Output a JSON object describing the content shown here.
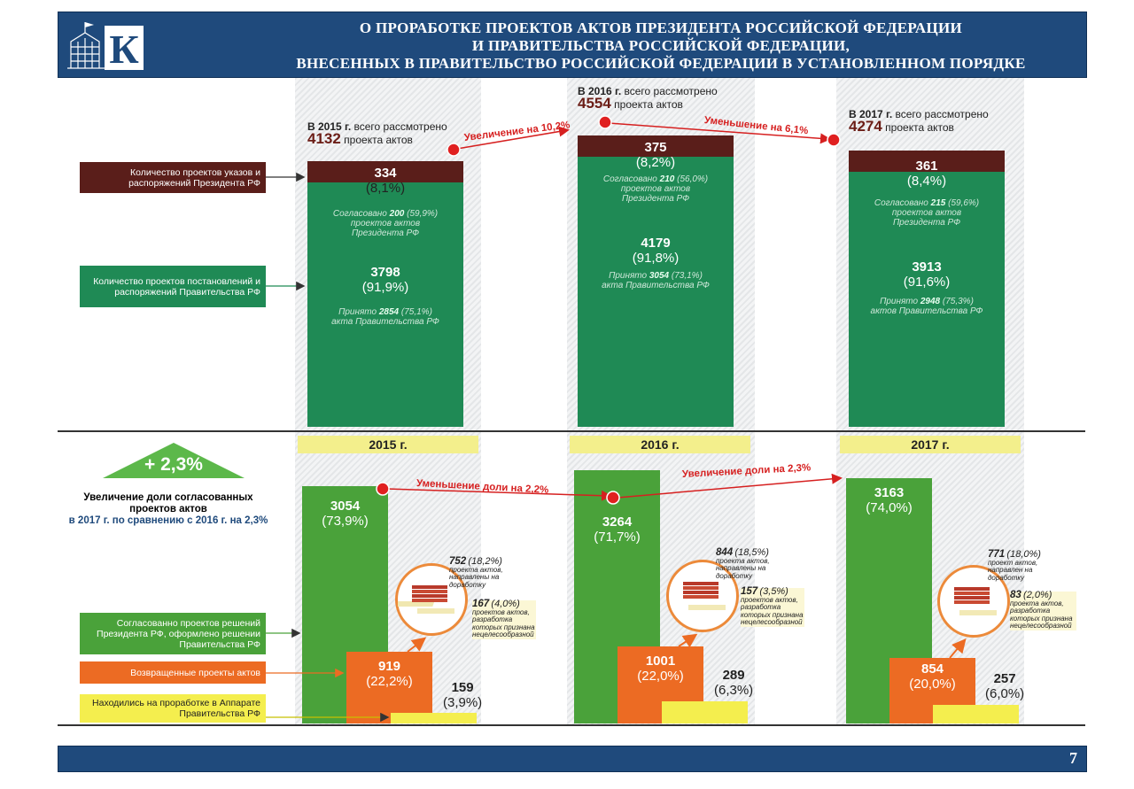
{
  "header": {
    "title_lines": [
      "О ПРОРАБОТКЕ ПРОЕКТОВ АКТОВ ПРЕЗИДЕНТА РОССИЙСКОЙ ФЕДЕРАЦИИ",
      "И ПРАВИТЕЛЬСТВА РОССИЙСКОЙ ФЕДЕРАЦИИ,",
      "ВНЕСЕННЫХ В ПРАВИТЕЛЬСТВО РОССИЙСКОЙ ФЕДЕРАЦИИ В УСТАНОВЛЕННОМ ПОРЯДКЕ"
    ],
    "logo_letter": "К",
    "logo_icon": "government-building-icon"
  },
  "legend_top": {
    "president": "Количество проектов указов и распоряжений Президента РФ",
    "government": "Количество проектов постановлений и распоряжений Правительства РФ"
  },
  "legend_bottom": {
    "agreed": "Согласованно проектов решений Президента РФ, оформлено решении Правительства РФ",
    "returned": "Возвращенные проекты актов",
    "in_work": "Находились на проработке в Аппарате Правительства РФ"
  },
  "badge": {
    "value": "+ 2,3%",
    "caption_title": "Увеличение доли согласованных проектов актов",
    "caption_sub": "в 2017 г. по сравнению с 2016 г. на 2,3%"
  },
  "years": [
    {
      "label": "2015 г.",
      "total_prefix": "В 2015 г.",
      "total_mid": "всего рассмотрено",
      "total": "4132",
      "total_unit": "проекта актов",
      "president_value": "334",
      "president_pct": "(8,1%)",
      "president_note_a": "Согласовано",
      "president_note_num": "200",
      "president_note_b": "(59,9%)",
      "president_note_c": "проектов актов",
      "president_note_d": "Президента РФ",
      "gov_value": "3798",
      "gov_pct": "(91,9%)",
      "gov_note_a": "Принято",
      "gov_note_num": "2854",
      "gov_note_b": "(75,1%)",
      "gov_note_c": "акта Правительства РФ",
      "agreed_value": "3054",
      "agreed_pct": "(73,9%)",
      "returned_value": "919",
      "returned_pct": "(22,2%)",
      "in_work_value": "159",
      "in_work_pct": "(3,9%)",
      "ret_a_num": "752",
      "ret_a_pct": "(18,2%)",
      "ret_a_text": "проекта актов, направлены на доработку",
      "ret_b_num": "167",
      "ret_b_pct": "(4,0%)",
      "ret_b_text": "проектов актов, разработка которых признана нецелесообразной"
    },
    {
      "label": "2016 г.",
      "total_prefix": "В 2016 г.",
      "total_mid": "всего рассмотрено",
      "total": "4554",
      "total_unit": "проекта актов",
      "president_value": "375",
      "president_pct": "(8,2%)",
      "president_note_a": "Согласовано",
      "president_note_num": "210",
      "president_note_b": "(56,0%)",
      "president_note_c": "проектов актов",
      "president_note_d": "Президента РФ",
      "gov_value": "4179",
      "gov_pct": "(91,8%)",
      "gov_note_a": "Принято",
      "gov_note_num": "3054",
      "gov_note_b": "(73,1%)",
      "gov_note_c": "акта Правительства РФ",
      "agreed_value": "3264",
      "agreed_pct": "(71,7%)",
      "returned_value": "1001",
      "returned_pct": "(22,0%)",
      "in_work_value": "289",
      "in_work_pct": "(6,3%)",
      "ret_a_num": "844",
      "ret_a_pct": "(18,5%)",
      "ret_a_text": "проекта актов, направлены на доработку",
      "ret_b_num": "157",
      "ret_b_pct": "(3,5%)",
      "ret_b_text": "проектов актов, разработка которых признана нецелесообразной"
    },
    {
      "label": "2017 г.",
      "total_prefix": "В 2017 г.",
      "total_mid": "всего рассмотрено",
      "total": "4274",
      "total_unit": "проекта актов",
      "president_value": "361",
      "president_pct": "(8,4%)",
      "president_note_a": "Согласовано",
      "president_note_num": "215",
      "president_note_b": "(59,6%)",
      "president_note_c": "проектов актов",
      "president_note_d": "Президента РФ",
      "gov_value": "3913",
      "gov_pct": "(91,6%)",
      "gov_note_a": "Принято",
      "gov_note_num": "2948",
      "gov_note_b": "(75,3%)",
      "gov_note_c": "актов Правительства РФ",
      "agreed_value": "3163",
      "agreed_pct": "(74,0%)",
      "returned_value": "854",
      "returned_pct": "(20,0%)",
      "in_work_value": "257",
      "in_work_pct": "(6,0%)",
      "ret_a_num": "771",
      "ret_a_pct": "(18,0%)",
      "ret_a_text": "проект актов, направлен на доработку",
      "ret_b_num": "83",
      "ret_b_pct": "(2,0%)",
      "ret_b_text": "проекта актов, разработка которых признана нецелесообразной"
    }
  ],
  "changes_top": [
    "Увеличение на 10,2%",
    "Уменьшение на 6,1%"
  ],
  "changes_bottom": [
    "Уменьшение доли на 2,2%",
    "Увеличение доли на 2,3%"
  ],
  "page_number": "7",
  "colors": {
    "header": "#1f4a7c",
    "president": "#5a1e1a",
    "government": "#1f8a55",
    "agreed": "#4aa23a",
    "returned": "#ec6b23",
    "in_work": "#f4ee4e",
    "change": "#d62020"
  },
  "chart_data": [
    {
      "type": "bar",
      "stacked": true,
      "categories": [
        "2015 г.",
        "2016 г.",
        "2017 г."
      ],
      "series": [
        {
          "name": "Количество проектов указов и распоряжений Президента РФ",
          "values": [
            334,
            375,
            361
          ]
        },
        {
          "name": "Количество проектов постановлений и распоряжений Правительства РФ",
          "values": [
            3798,
            4179,
            3913
          ]
        }
      ],
      "totals": [
        4132,
        4554,
        4274
      ]
    },
    {
      "type": "bar",
      "categories": [
        "2015 г.",
        "2016 г.",
        "2017 г."
      ],
      "series": [
        {
          "name": "Согласованно проектов решений Президента РФ, оформлено решении Правительства РФ",
          "values": [
            3054,
            3264,
            3163
          ]
        },
        {
          "name": "Возвращенные проекты актов",
          "values": [
            919,
            1001,
            854
          ]
        },
        {
          "name": "Находились на проработке в Аппарате Правительства РФ",
          "values": [
            159,
            289,
            257
          ]
        }
      ]
    }
  ]
}
